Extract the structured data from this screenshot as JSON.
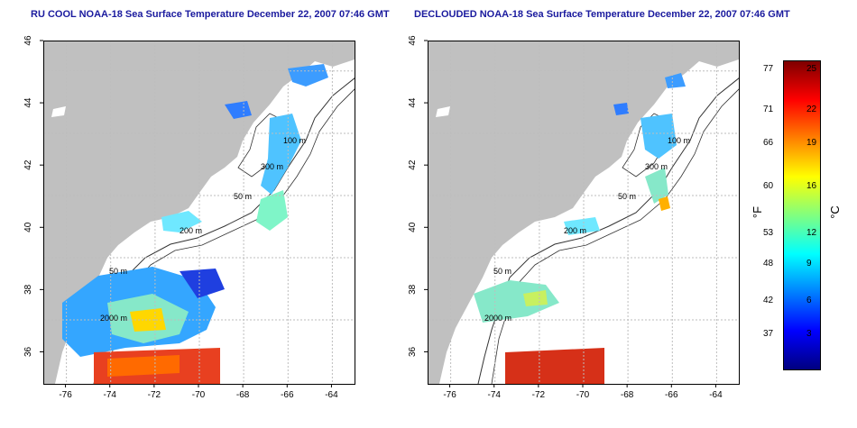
{
  "titles": {
    "left": "RU COOL NOAA-18 Sea Surface Temperature December 22, 2007 07:46 GMT",
    "right": "DECLOUDED NOAA-18 Sea Surface Temperature December 22, 2007 07:46 GMT"
  },
  "axes": {
    "lon_range": [
      -77,
      -63
    ],
    "lat_range": [
      35,
      46
    ],
    "lon_ticks": [
      "-76",
      "-74",
      "-72",
      "-70",
      "-68",
      "-66",
      "-64"
    ],
    "lat_ticks": [
      "36",
      "38",
      "40",
      "42",
      "44",
      "46"
    ]
  },
  "contour_labels": {
    "left": [
      "100 m",
      "300 m",
      "50 m",
      "200 m",
      "50 m",
      "2000 m"
    ],
    "right": [
      "100 m",
      "300 m",
      "50 m",
      "200 m",
      "50 m",
      "2000 m"
    ]
  },
  "colorbar": {
    "fahrenheit_ticks": [
      "77",
      "71",
      "66",
      "60",
      "53",
      "48",
      "42",
      "37"
    ],
    "celsius_ticks": [
      "25",
      "22",
      "19",
      "16",
      "12",
      "9",
      "6",
      "3"
    ],
    "f_unit": "°F",
    "c_unit": "°C",
    "stops": [
      "#00007f",
      "#0000ff",
      "#0080ff",
      "#00ffff",
      "#80ff80",
      "#ffff00",
      "#ff8000",
      "#ff0000",
      "#7f0000"
    ]
  },
  "colors": {
    "land": "#c0c0c0",
    "title": "#1a1a9e",
    "grid": "#bdbdbd"
  }
}
